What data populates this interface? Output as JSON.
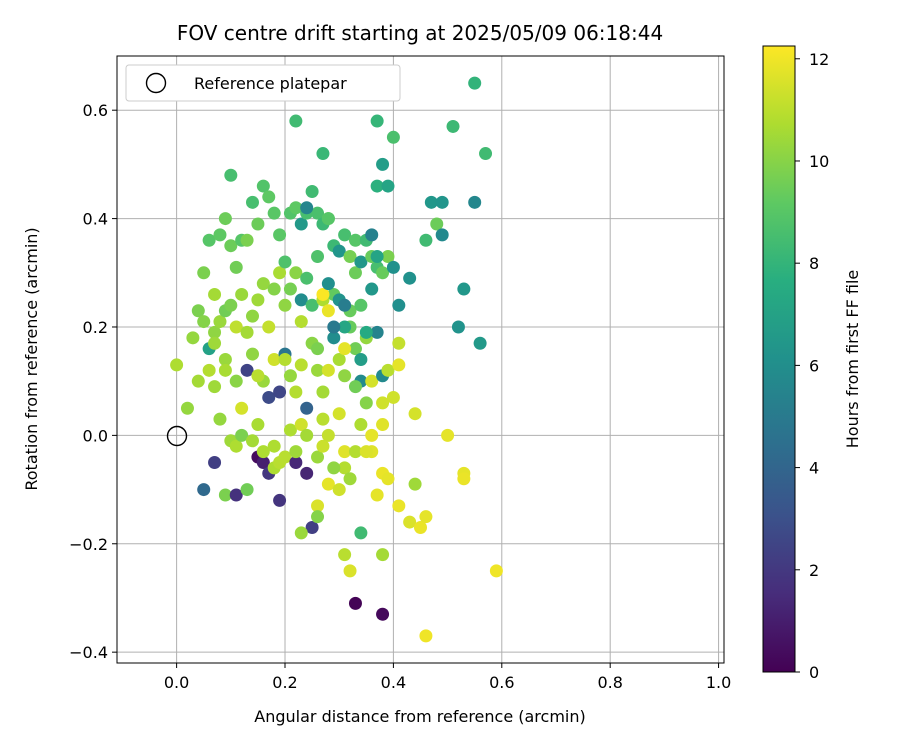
{
  "chart_data": {
    "type": "scatter",
    "title": "FOV centre drift starting at 2025/05/09 06:18:44",
    "xlabel": "Angular distance from reference (arcmin)",
    "ylabel": "Rotation from reference (arcmin)",
    "xlim": [
      -0.11,
      1.01
    ],
    "ylim": [
      -0.42,
      0.7
    ],
    "xticks": [
      "0.0",
      "0.2",
      "0.4",
      "0.6",
      "0.8",
      "1.0"
    ],
    "yticks": [
      "−0.4",
      "−0.2",
      "0.0",
      "0.2",
      "0.4",
      "0.6"
    ],
    "grid": true,
    "legend": {
      "placement": "upper-left",
      "entries": [
        "Reference platepar"
      ]
    },
    "reference_point": {
      "x": 0.0,
      "y": 0.0,
      "marker": "hollow-circle"
    },
    "colorbar": {
      "label": "Hours from first FF file",
      "colormap": "viridis",
      "range": [
        0,
        12.25
      ],
      "ticks": [
        "0",
        "2",
        "4",
        "6",
        "8",
        "10",
        "12"
      ]
    },
    "points": [
      [
        0.05,
        -0.1,
        4.2
      ],
      [
        0.07,
        -0.05,
        2.3
      ],
      [
        0.09,
        -0.11,
        9.8
      ],
      [
        0.11,
        -0.11,
        1.8
      ],
      [
        0.13,
        -0.1,
        9.6
      ],
      [
        0.15,
        -0.04,
        0.4
      ],
      [
        0.16,
        -0.05,
        1.1
      ],
      [
        0.17,
        -0.07,
        2.0
      ],
      [
        0.19,
        -0.12,
        1.9
      ],
      [
        0.18,
        -0.02,
        10.8
      ],
      [
        0.2,
        -0.04,
        11.0
      ],
      [
        0.22,
        -0.05,
        1.4
      ],
      [
        0.24,
        -0.07,
        1.3
      ],
      [
        0.25,
        -0.17,
        2.3
      ],
      [
        0.23,
        -0.18,
        10.4
      ],
      [
        0.26,
        -0.13,
        11.6
      ],
      [
        0.26,
        -0.15,
        10.0
      ],
      [
        0.28,
        -0.09,
        11.8
      ],
      [
        0.3,
        -0.1,
        11.4
      ],
      [
        0.31,
        -0.06,
        10.9
      ],
      [
        0.31,
        -0.22,
        11.0
      ],
      [
        0.32,
        -0.25,
        11.6
      ],
      [
        0.33,
        -0.31,
        0.1
      ],
      [
        0.38,
        -0.33,
        0.3
      ],
      [
        0.34,
        -0.18,
        8.4
      ],
      [
        0.36,
        -0.03,
        11.7
      ],
      [
        0.37,
        -0.11,
        11.8
      ],
      [
        0.38,
        -0.07,
        11.9
      ],
      [
        0.39,
        -0.08,
        11.8
      ],
      [
        0.38,
        -0.22,
        10.6
      ],
      [
        0.41,
        -0.13,
        11.9
      ],
      [
        0.43,
        -0.16,
        11.6
      ],
      [
        0.44,
        -0.09,
        10.5
      ],
      [
        0.45,
        -0.17,
        11.9
      ],
      [
        0.46,
        -0.15,
        11.8
      ],
      [
        0.46,
        -0.37,
        12.0
      ],
      [
        0.5,
        -0.0,
        11.8
      ],
      [
        0.53,
        -0.07,
        11.8
      ],
      [
        0.53,
        -0.08,
        11.9
      ],
      [
        0.59,
        -0.25,
        12.0
      ],
      [
        0.08,
        0.03,
        10.3
      ],
      [
        0.1,
        -0.01,
        10.5
      ],
      [
        0.11,
        -0.02,
        10.8
      ],
      [
        0.12,
        0.0,
        9.8
      ],
      [
        0.14,
        -0.01,
        10.6
      ],
      [
        0.15,
        0.02,
        10.7
      ],
      [
        0.16,
        -0.03,
        10.8
      ],
      [
        0.18,
        -0.06,
        10.8
      ],
      [
        0.19,
        -0.05,
        11.0
      ],
      [
        0.21,
        0.01,
        10.8
      ],
      [
        0.22,
        -0.03,
        10.5
      ],
      [
        0.23,
        0.02,
        11.4
      ],
      [
        0.24,
        0.0,
        10.6
      ],
      [
        0.26,
        -0.04,
        10.4
      ],
      [
        0.27,
        -0.02,
        11.3
      ],
      [
        0.27,
        0.03,
        11.0
      ],
      [
        0.28,
        0.0,
        11.2
      ],
      [
        0.29,
        -0.06,
        10.2
      ],
      [
        0.3,
        0.04,
        11.5
      ],
      [
        0.31,
        -0.03,
        11.7
      ],
      [
        0.32,
        -0.08,
        10.5
      ],
      [
        0.33,
        -0.03,
        10.9
      ],
      [
        0.34,
        0.02,
        10.8
      ],
      [
        0.35,
        -0.03,
        11.6
      ],
      [
        0.36,
        0.0,
        11.8
      ],
      [
        0.38,
        0.02,
        11.7
      ],
      [
        0.4,
        0.07,
        11.4
      ],
      [
        0.44,
        0.04,
        11.5
      ],
      [
        0.02,
        0.05,
        10.3
      ],
      [
        0.04,
        0.1,
        10.6
      ],
      [
        0.06,
        0.12,
        10.9
      ],
      [
        0.07,
        0.09,
        10.5
      ],
      [
        0.09,
        0.14,
        10.4
      ],
      [
        0.11,
        0.1,
        10.1
      ],
      [
        0.13,
        0.12,
        2.5
      ],
      [
        0.14,
        0.15,
        10.2
      ],
      [
        0.16,
        0.1,
        10.4
      ],
      [
        0.17,
        0.07,
        2.8
      ],
      [
        0.18,
        0.14,
        11.4
      ],
      [
        0.19,
        0.08,
        2.6
      ],
      [
        0.2,
        0.15,
        4.8
      ],
      [
        0.21,
        0.11,
        10.3
      ],
      [
        0.22,
        0.08,
        10.9
      ],
      [
        0.23,
        0.13,
        11.0
      ],
      [
        0.24,
        0.05,
        3.9
      ],
      [
        0.25,
        0.17,
        10.1
      ],
      [
        0.26,
        0.12,
        10.4
      ],
      [
        0.27,
        0.08,
        10.6
      ],
      [
        0.28,
        0.12,
        11.5
      ],
      [
        0.29,
        0.18,
        6.0
      ],
      [
        0.3,
        0.14,
        10.7
      ],
      [
        0.31,
        0.11,
        10.2
      ],
      [
        0.32,
        0.2,
        9.4
      ],
      [
        0.33,
        0.16,
        9.6
      ],
      [
        0.34,
        0.1,
        5.9
      ],
      [
        0.35,
        0.18,
        10.3
      ],
      [
        0.36,
        0.1,
        11.5
      ],
      [
        0.37,
        0.19,
        5.5
      ],
      [
        0.38,
        0.11,
        5.8
      ],
      [
        0.39,
        0.12,
        11.0
      ],
      [
        0.41,
        0.13,
        11.8
      ],
      [
        0.41,
        0.17,
        11.2
      ],
      [
        0.43,
        0.29,
        6.2
      ],
      [
        0.46,
        0.36,
        8.4
      ],
      [
        0.47,
        0.43,
        6.5
      ],
      [
        0.48,
        0.39,
        9.5
      ],
      [
        0.49,
        0.43,
        6.4
      ],
      [
        0.49,
        0.37,
        5.8
      ],
      [
        0.52,
        0.2,
        6.3
      ],
      [
        0.53,
        0.27,
        6.5
      ],
      [
        0.51,
        0.57,
        8.3
      ],
      [
        0.55,
        0.43,
        5.7
      ],
      [
        0.56,
        0.17,
        6.6
      ],
      [
        0.57,
        0.52,
        8.4
      ],
      [
        0.55,
        0.65,
        8.0
      ],
      [
        0.0,
        0.13,
        10.8
      ],
      [
        0.03,
        0.18,
        10.3
      ],
      [
        0.04,
        0.23,
        9.8
      ],
      [
        0.05,
        0.21,
        10.0
      ],
      [
        0.06,
        0.16,
        7.0
      ],
      [
        0.07,
        0.19,
        10.2
      ],
      [
        0.08,
        0.21,
        10.4
      ],
      [
        0.09,
        0.23,
        9.6
      ],
      [
        0.1,
        0.24,
        9.8
      ],
      [
        0.11,
        0.2,
        11.1
      ],
      [
        0.12,
        0.26,
        10.4
      ],
      [
        0.13,
        0.19,
        10.6
      ],
      [
        0.14,
        0.22,
        10.2
      ],
      [
        0.15,
        0.25,
        10.5
      ],
      [
        0.16,
        0.28,
        10.3
      ],
      [
        0.17,
        0.2,
        11.2
      ],
      [
        0.18,
        0.27,
        10.0
      ],
      [
        0.19,
        0.3,
        10.7
      ],
      [
        0.2,
        0.24,
        10.2
      ],
      [
        0.21,
        0.27,
        9.7
      ],
      [
        0.22,
        0.3,
        10.1
      ],
      [
        0.23,
        0.25,
        6.0
      ],
      [
        0.24,
        0.29,
        8.7
      ],
      [
        0.25,
        0.24,
        8.6
      ],
      [
        0.26,
        0.33,
        8.8
      ],
      [
        0.27,
        0.25,
        10.8
      ],
      [
        0.28,
        0.23,
        11.9
      ],
      [
        0.29,
        0.26,
        9.3
      ],
      [
        0.3,
        0.25,
        6.3
      ],
      [
        0.31,
        0.2,
        7.3
      ],
      [
        0.32,
        0.23,
        9.4
      ],
      [
        0.33,
        0.3,
        9.5
      ],
      [
        0.34,
        0.24,
        9.0
      ],
      [
        0.35,
        0.19,
        7.5
      ],
      [
        0.36,
        0.27,
        6.5
      ],
      [
        0.37,
        0.31,
        8.6
      ],
      [
        0.38,
        0.3,
        9.4
      ],
      [
        0.39,
        0.33,
        9.8
      ],
      [
        0.4,
        0.31,
        6.2
      ],
      [
        0.41,
        0.24,
        6.1
      ],
      [
        0.05,
        0.3,
        9.8
      ],
      [
        0.06,
        0.36,
        9.0
      ],
      [
        0.07,
        0.26,
        10.6
      ],
      [
        0.08,
        0.37,
        9.2
      ],
      [
        0.09,
        0.4,
        9.5
      ],
      [
        0.1,
        0.35,
        9.5
      ],
      [
        0.11,
        0.31,
        9.6
      ],
      [
        0.12,
        0.36,
        9.0
      ],
      [
        0.13,
        0.36,
        9.8
      ],
      [
        0.14,
        0.43,
        8.6
      ],
      [
        0.15,
        0.39,
        9.5
      ],
      [
        0.16,
        0.46,
        8.9
      ],
      [
        0.17,
        0.44,
        9.2
      ],
      [
        0.18,
        0.41,
        9.1
      ],
      [
        0.19,
        0.37,
        9.1
      ],
      [
        0.2,
        0.32,
        8.8
      ],
      [
        0.21,
        0.41,
        8.9
      ],
      [
        0.22,
        0.42,
        9.2
      ],
      [
        0.23,
        0.39,
        6.6
      ],
      [
        0.24,
        0.41,
        8.6
      ],
      [
        0.25,
        0.45,
        8.4
      ],
      [
        0.26,
        0.41,
        8.7
      ],
      [
        0.27,
        0.39,
        8.3
      ],
      [
        0.28,
        0.4,
        9.5
      ],
      [
        0.29,
        0.35,
        8.3
      ],
      [
        0.3,
        0.34,
        6.4
      ],
      [
        0.31,
        0.37,
        8.6
      ],
      [
        0.32,
        0.33,
        9.7
      ],
      [
        0.33,
        0.36,
        9.0
      ],
      [
        0.34,
        0.32,
        6.5
      ],
      [
        0.35,
        0.36,
        8.4
      ],
      [
        0.36,
        0.33,
        9.4
      ],
      [
        0.37,
        0.46,
        7.8
      ],
      [
        0.38,
        0.5,
        6.8
      ],
      [
        0.39,
        0.46,
        7.2
      ],
      [
        0.1,
        0.48,
        8.6
      ],
      [
        0.22,
        0.58,
        8.4
      ],
      [
        0.27,
        0.52,
        8.2
      ],
      [
        0.37,
        0.58,
        8.1
      ],
      [
        0.4,
        0.55,
        8.7
      ],
      [
        0.07,
        0.17,
        10.5
      ],
      [
        0.09,
        0.12,
        10.7
      ],
      [
        0.12,
        0.05,
        11.5
      ],
      [
        0.15,
        0.11,
        11.0
      ],
      [
        0.2,
        0.14,
        10.9
      ],
      [
        0.23,
        0.21,
        10.9
      ],
      [
        0.26,
        0.16,
        9.8
      ],
      [
        0.27,
        0.26,
        12.2
      ],
      [
        0.31,
        0.16,
        11.8
      ],
      [
        0.33,
        0.09,
        9.6
      ],
      [
        0.35,
        0.06,
        10.0
      ],
      [
        0.38,
        0.06,
        11.4
      ],
      [
        0.28,
        0.28,
        6.1
      ],
      [
        0.29,
        0.2,
        5.0
      ],
      [
        0.34,
        0.14,
        6.8
      ],
      [
        0.24,
        0.42,
        5.6
      ],
      [
        0.28,
        0.4,
        9.0
      ],
      [
        0.31,
        0.24,
        5.2
      ],
      [
        0.36,
        0.37,
        5.4
      ],
      [
        0.37,
        0.33,
        7.2
      ]
    ]
  }
}
